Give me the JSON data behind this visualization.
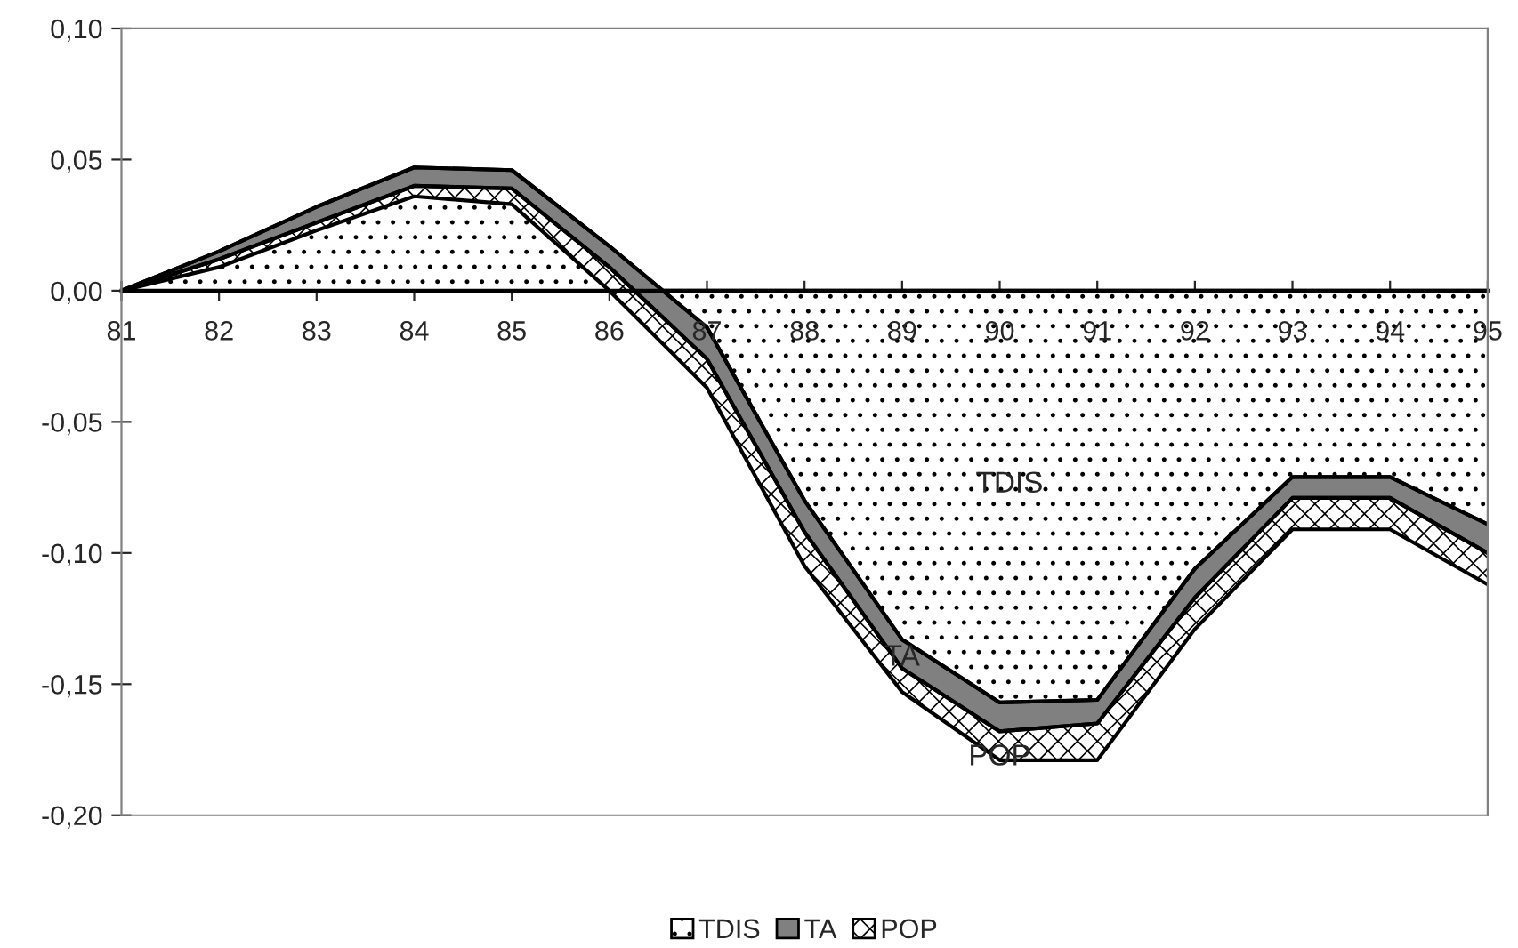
{
  "chart_data": {
    "type": "area",
    "stacked": true,
    "categories": [
      "81",
      "82",
      "83",
      "84",
      "85",
      "86",
      "87",
      "88",
      "89",
      "90",
      "91",
      "92",
      "93",
      "94",
      "95"
    ],
    "series": [
      {
        "name": "TDIS",
        "color": "#ffffff",
        "values": [
          0,
          0.015,
          0.032,
          0.047,
          0.046,
          0.017,
          -0.014,
          -0.08,
          -0.133,
          -0.157,
          -0.156,
          -0.106,
          -0.071,
          -0.071,
          -0.089
        ]
      },
      {
        "name": "TA",
        "color": "#808080",
        "values": [
          0,
          -0.003,
          -0.006,
          -0.007,
          -0.007,
          -0.008,
          -0.012,
          -0.012,
          -0.011,
          -0.011,
          -0.009,
          -0.011,
          -0.008,
          -0.008,
          -0.011
        ]
      },
      {
        "name": "POP",
        "color": "#ffffff",
        "values": [
          0,
          -0.003,
          -0.003,
          -0.004,
          -0.006,
          -0.009,
          -0.011,
          -0.013,
          -0.009,
          -0.011,
          -0.014,
          -0.012,
          -0.012,
          -0.012,
          -0.012
        ]
      }
    ],
    "ylim": [
      -0.2,
      0.1
    ],
    "yticks": [
      {
        "value": -0.2,
        "label": "-0,20"
      },
      {
        "value": -0.15,
        "label": "-0,15"
      },
      {
        "value": -0.1,
        "label": "-0,10"
      },
      {
        "value": -0.05,
        "label": "-0,05"
      },
      {
        "value": 0,
        "label": "0,00"
      },
      {
        "value": 0.05,
        "label": "0,05"
      },
      {
        "value": 0.1,
        "label": "0,10"
      }
    ],
    "annotations": [
      "TDIS",
      {
        "text": "TA",
        "x": "89",
        "y": -0.14
      },
      {
        "text": "POP",
        "x": "90",
        "y": -0.178
      }
    ],
    "grid": false,
    "legend": "bottom"
  }
}
